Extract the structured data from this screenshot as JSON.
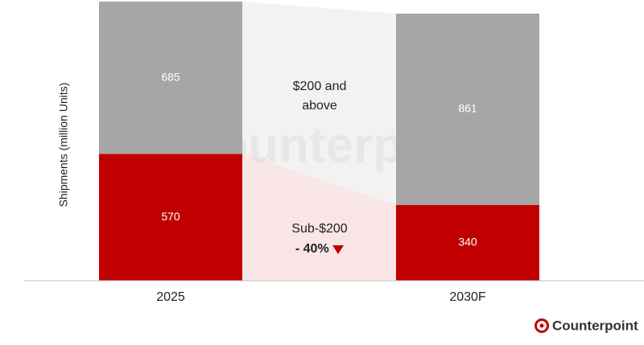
{
  "chart_data": {
    "type": "stacked_bar",
    "y_axis_label": "Shipments (million Units)",
    "categories": [
      "2025",
      "2030F"
    ],
    "series": [
      {
        "name": "Sub-$200",
        "color": "#c00000",
        "values": [
          570,
          340
        ]
      },
      {
        "name": "$200 and above",
        "color": "#a6a6a6",
        "values": [
          685,
          861
        ]
      }
    ],
    "ylim": [
      0,
      1255
    ],
    "annotation": "- 40%",
    "watermark": "Counterpoint",
    "brand": "Counterpoint"
  }
}
